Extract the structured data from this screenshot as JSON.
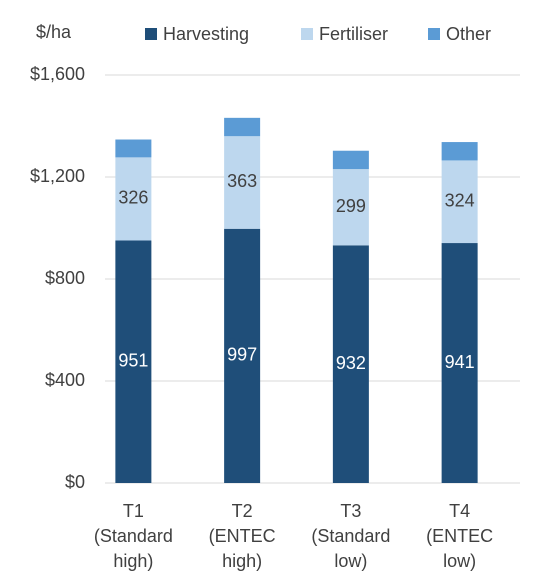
{
  "chart_data": {
    "type": "stacked_bar",
    "y_label": "$/ha",
    "categories": [
      [
        "T1",
        "(Standard",
        "high)"
      ],
      [
        "T2",
        "(ENTEC",
        "high)"
      ],
      [
        "T3",
        "(Standard",
        "low)"
      ],
      [
        "T4",
        "(ENTEC",
        "low)"
      ]
    ],
    "series": [
      {
        "name": "Harvesting",
        "color": "#1f4e79",
        "label_color": "#ffffff",
        "data_labels": true,
        "values": [
          951,
          997,
          932,
          941
        ]
      },
      {
        "name": "Fertiliser",
        "color": "#bdd7ee",
        "label_color": "#404040",
        "data_labels": true,
        "values": [
          326,
          363,
          299,
          324
        ]
      },
      {
        "name": "Other",
        "color": "#5b9bd5",
        "data_labels": false,
        "values": [
          70,
          72,
          72,
          72
        ]
      }
    ],
    "ylim": [
      0,
      1600
    ],
    "yticks": [
      {
        "value": 0,
        "label": "$0"
      },
      {
        "value": 400,
        "label": "$400"
      },
      {
        "value": 800,
        "label": "$800"
      },
      {
        "value": 1200,
        "label": "$1,200"
      },
      {
        "value": 1600,
        "label": "$1,600"
      }
    ],
    "grid": true,
    "legend": "top"
  }
}
